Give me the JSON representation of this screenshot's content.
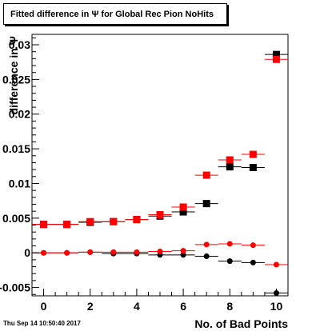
{
  "datestamp": "Thu Sep 14 10:50:40 2017",
  "chart_data": {
    "type": "scatter",
    "title": "Fitted difference in  Ψ  for Global Rec Pion NoHits",
    "xlabel": "No. of Bad Points",
    "ylabel": "difference in Ψ",
    "xlim": [
      -0.5,
      10.5
    ],
    "ylim": [
      -0.0062,
      0.0315
    ],
    "xticks": [
      0,
      2,
      4,
      6,
      8,
      10
    ],
    "xtick_labels": [
      "0",
      "2",
      "4",
      "6",
      "8",
      "10"
    ],
    "yticks": [
      -0.005,
      0,
      0.005,
      0.01,
      0.015,
      0.02,
      0.025,
      0.03
    ],
    "ytick_labels": [
      "-0.005",
      "0",
      "0.005",
      "0.01",
      "0.015",
      "0.02",
      "0.025",
      "0.03"
    ],
    "grid": false,
    "x": [
      0,
      1,
      2,
      3,
      4,
      5,
      6,
      7,
      8,
      9,
      10
    ],
    "series": [
      {
        "marker": "square",
        "color": "#000000",
        "values": [
          0.0041,
          0.0041,
          0.0044,
          0.0045,
          0.0048,
          0.0053,
          0.0059,
          0.0071,
          0.0124,
          0.0123,
          0.0286
        ]
      },
      {
        "marker": "square",
        "color": "#ff0000",
        "values": [
          0.0041,
          0.0041,
          0.0045,
          0.0045,
          0.0048,
          0.0055,
          0.0066,
          0.0112,
          0.0134,
          0.0142,
          0.0279
        ]
      },
      {
        "marker": "circle",
        "color": "#000000",
        "values": [
          0.0,
          0.0,
          0.0001,
          -0.0001,
          -0.0001,
          -0.0003,
          -0.0003,
          -0.0005,
          -0.0012,
          -0.0014,
          -0.0058
        ]
      },
      {
        "marker": "circle",
        "color": "#ff0000",
        "values": [
          0.0,
          0.0,
          0.0001,
          0.0001,
          0.0001,
          0.0002,
          0.0003,
          0.0012,
          0.0013,
          0.0011,
          -0.0017
        ]
      }
    ]
  }
}
